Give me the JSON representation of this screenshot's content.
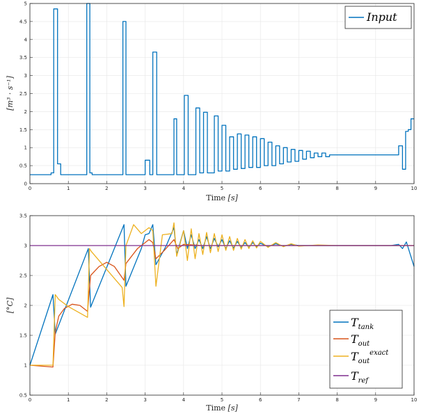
{
  "chart_data": [
    {
      "type": "line",
      "xlabel_main": "Time",
      "xlabel_unit": "[s]",
      "ylabel": "[m³ · s⁻¹]",
      "xlim": [
        0,
        10
      ],
      "ylim": [
        0,
        5
      ],
      "xticks": [
        "0",
        "1",
        "2",
        "3",
        "4",
        "5",
        "6",
        "7",
        "8",
        "9",
        "10"
      ],
      "yticks": [
        "0",
        "0.5",
        "1",
        "1.5",
        "2",
        "2.5",
        "3",
        "3.5",
        "4",
        "4.5",
        "5"
      ],
      "grid": true,
      "legend_position": "top-right",
      "series": [
        {
          "name": "Input",
          "color": "#0072BD",
          "step": true,
          "x": [
            0,
            0.55,
            0.62,
            0.72,
            0.8,
            1.0,
            1.48,
            1.56,
            1.62,
            1.7,
            1.9,
            2.0,
            2.42,
            2.5,
            2.6,
            2.9,
            3.0,
            3.12,
            3.2,
            3.3,
            3.55,
            3.75,
            3.82,
            3.92,
            4.02,
            4.12,
            4.22,
            4.32,
            4.42,
            4.52,
            4.62,
            4.72,
            4.8,
            4.9,
            5.0,
            5.1,
            5.2,
            5.3,
            5.4,
            5.5,
            5.6,
            5.7,
            5.8,
            5.9,
            6.0,
            6.1,
            6.2,
            6.3,
            6.4,
            6.5,
            6.6,
            6.7,
            6.8,
            6.9,
            7.0,
            7.1,
            7.2,
            7.3,
            7.4,
            7.5,
            7.6,
            7.7,
            7.8,
            8.0,
            8.2,
            8.4,
            8.6,
            8.8,
            9.0,
            9.2,
            9.4,
            9.6,
            9.7,
            9.78,
            9.85,
            9.92,
            10.0
          ],
          "values": [
            0.25,
            0.3,
            4.85,
            0.55,
            0.25,
            0.25,
            5.0,
            0.3,
            0.25,
            0.25,
            0.25,
            0.25,
            4.5,
            0.25,
            0.25,
            0.25,
            0.65,
            0.25,
            3.65,
            0.25,
            0.25,
            1.8,
            0.25,
            0.25,
            2.45,
            0.25,
            0.25,
            2.1,
            0.3,
            1.98,
            0.3,
            0.3,
            1.88,
            0.35,
            1.62,
            0.35,
            1.3,
            0.4,
            1.38,
            0.42,
            1.35,
            0.45,
            1.3,
            0.45,
            1.25,
            0.5,
            1.15,
            0.5,
            1.05,
            0.55,
            1.0,
            0.6,
            0.95,
            0.62,
            0.92,
            0.68,
            0.9,
            0.72,
            0.85,
            0.75,
            0.85,
            0.75,
            0.8,
            0.8,
            0.8,
            0.8,
            0.8,
            0.8,
            0.8,
            0.8,
            0.8,
            1.05,
            0.4,
            1.45,
            1.5,
            1.8,
            1.8
          ]
        }
      ]
    },
    {
      "type": "line",
      "xlabel_main": "Time",
      "xlabel_unit": "[s]",
      "ylabel": "[°C]",
      "xlim": [
        0,
        10
      ],
      "ylim": [
        0.5,
        3.5
      ],
      "xticks": [
        "0",
        "1",
        "2",
        "3",
        "4",
        "5",
        "6",
        "7",
        "8",
        "9",
        "10"
      ],
      "yticks": [
        "0.5",
        "1",
        "1.5",
        "2",
        "2.5",
        "3",
        "3.5"
      ],
      "grid": true,
      "legend_position": "bottom-right",
      "series": [
        {
          "name": "T_tank",
          "legend_main": "T",
          "legend_sub": "tank",
          "color": "#0072BD",
          "x": [
            0,
            0.6,
            0.66,
            1.52,
            1.58,
            2.45,
            2.5,
            2.9,
            3.0,
            3.1,
            3.2,
            3.28,
            3.55,
            3.75,
            3.82,
            4.0,
            4.1,
            4.2,
            4.3,
            4.4,
            4.5,
            4.6,
            4.7,
            4.8,
            4.9,
            5.0,
            5.1,
            5.2,
            5.3,
            5.4,
            5.5,
            5.6,
            5.7,
            5.8,
            5.9,
            6.0,
            6.2,
            6.4,
            6.6,
            6.8,
            7.0,
            7.5,
            8.0,
            8.5,
            9.0,
            9.4,
            9.6,
            9.7,
            9.8,
            10.0
          ],
          "values": [
            1.0,
            2.18,
            1.52,
            2.95,
            1.97,
            3.35,
            2.32,
            2.95,
            3.18,
            3.2,
            3.35,
            2.68,
            3.0,
            3.3,
            2.85,
            3.25,
            2.95,
            3.18,
            2.95,
            3.1,
            2.95,
            3.15,
            2.95,
            3.12,
            2.98,
            3.1,
            2.95,
            3.08,
            2.96,
            3.07,
            2.97,
            3.05,
            2.97,
            3.05,
            2.98,
            3.04,
            2.98,
            3.03,
            2.99,
            3.02,
            3.0,
            3.0,
            3.0,
            3.0,
            3.0,
            3.0,
            3.02,
            2.95,
            3.06,
            2.65
          ]
        },
        {
          "name": "T_out",
          "legend_main": "T",
          "legend_sub": "out",
          "color": "#D95319",
          "x": [
            0,
            0.6,
            0.66,
            0.75,
            0.9,
            1.1,
            1.3,
            1.5,
            1.58,
            1.8,
            2.0,
            2.2,
            2.45,
            2.5,
            2.8,
            3.0,
            3.1,
            3.2,
            3.28,
            3.5,
            3.75,
            3.85,
            4.0,
            4.5,
            5.0,
            5.5,
            6.0,
            6.5,
            7.0,
            7.5,
            8.0,
            9.0,
            10.0
          ],
          "values": [
            1.0,
            0.97,
            1.55,
            1.82,
            1.95,
            2.02,
            2.0,
            1.9,
            2.5,
            2.65,
            2.72,
            2.65,
            2.42,
            2.7,
            2.95,
            3.05,
            3.1,
            3.05,
            2.78,
            2.92,
            3.1,
            2.95,
            3.02,
            3.0,
            3.0,
            3.0,
            3.0,
            3.0,
            3.0,
            3.0,
            3.0,
            3.0,
            3.0
          ]
        },
        {
          "name": "T_out^exact",
          "legend_main": "T",
          "legend_sub": "out",
          "legend_sup": "exact",
          "color": "#EDB120",
          "x": [
            0,
            0.6,
            0.66,
            0.75,
            1.0,
            1.5,
            1.55,
            1.6,
            2.0,
            2.4,
            2.45,
            2.5,
            2.7,
            2.9,
            3.1,
            3.2,
            3.28,
            3.45,
            3.7,
            3.75,
            3.82,
            4.0,
            4.1,
            4.2,
            4.3,
            4.4,
            4.5,
            4.6,
            4.7,
            4.8,
            4.9,
            5.0,
            5.1,
            5.2,
            5.3,
            5.4,
            5.5,
            5.6,
            5.7,
            5.8,
            5.9,
            6.0,
            6.2,
            6.4,
            6.6,
            6.8,
            7.0,
            7.5,
            8.0,
            9.0,
            10.0
          ],
          "values": [
            1.0,
            1.0,
            2.18,
            2.1,
            1.98,
            1.8,
            2.95,
            2.9,
            2.6,
            2.3,
            1.98,
            3.0,
            3.35,
            3.2,
            3.3,
            3.25,
            2.32,
            3.18,
            3.2,
            3.38,
            2.82,
            3.25,
            2.75,
            3.28,
            2.78,
            3.2,
            2.85,
            3.22,
            2.88,
            3.2,
            2.9,
            3.18,
            2.92,
            3.15,
            2.92,
            3.12,
            2.94,
            3.1,
            2.95,
            3.08,
            2.96,
            3.07,
            2.97,
            3.05,
            2.98,
            3.03,
            2.99,
            3.01,
            3.0,
            3.0,
            3.0
          ]
        },
        {
          "name": "T_ref",
          "legend_main": "T",
          "legend_sub": "ref",
          "color": "#7E2F8E",
          "x": [
            0,
            10
          ],
          "values": [
            3.0,
            3.0
          ]
        }
      ]
    }
  ]
}
